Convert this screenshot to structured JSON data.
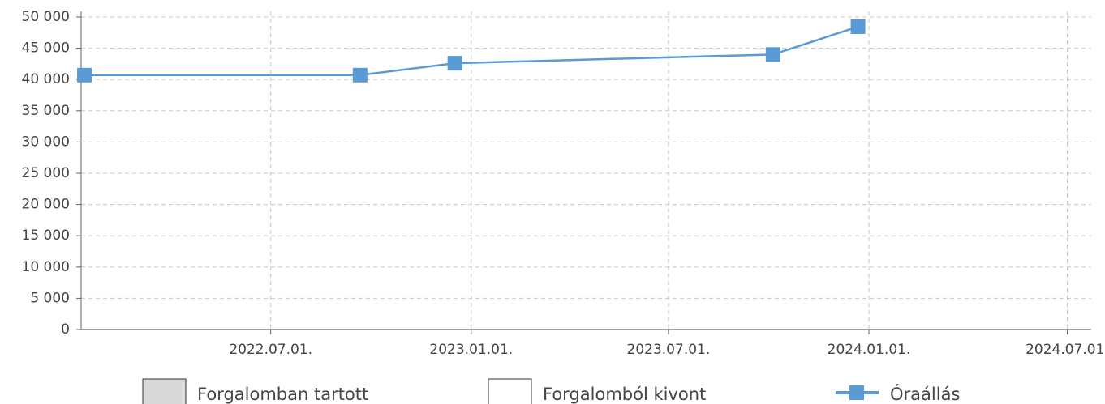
{
  "chart_data": {
    "type": "line",
    "x": [
      "2022-01-11",
      "2022-09-21",
      "2022-12-17",
      "2023-10-05",
      "2023-12-22"
    ],
    "series": [
      {
        "name": "Óraállás",
        "color": "#5b9bd5",
        "values": [
          40700,
          40700,
          42600,
          44000,
          48450
        ]
      }
    ],
    "legend_items": [
      {
        "name": "Forgalomban tartott",
        "color": "#d9d9d9"
      },
      {
        "name": "Forgalomból kivont",
        "color": "#ffffff"
      }
    ],
    "xlim": [
      "2022-01-08",
      "2024-07-23"
    ],
    "xticks": [
      {
        "value": "2022-07-01",
        "label": "2022.07.01."
      },
      {
        "value": "2023-01-01",
        "label": "2023.01.01."
      },
      {
        "value": "2023-07-01",
        "label": "2023.07.01."
      },
      {
        "value": "2024-01-01",
        "label": "2024.01.01."
      },
      {
        "value": "2024-07-01",
        "label": "2024.07.01."
      }
    ],
    "ylim": [
      0,
      50000
    ],
    "yticks": [
      0,
      {
        "value": 5000,
        "label": "5 000"
      },
      {
        "value": 10000,
        "label": "10 000"
      },
      {
        "value": 15000,
        "label": "15 000"
      },
      {
        "value": 20000,
        "label": "20 000"
      },
      {
        "value": 25000,
        "label": "25 000"
      },
      {
        "value": 30000,
        "label": "30 000"
      },
      {
        "value": 35000,
        "label": "35 000"
      },
      {
        "value": 40000,
        "label": "40 000"
      },
      {
        "value": 45000,
        "label": "45 000"
      },
      {
        "value": 50000,
        "label": "50 000"
      }
    ],
    "grid": true,
    "legend": "bottom"
  }
}
